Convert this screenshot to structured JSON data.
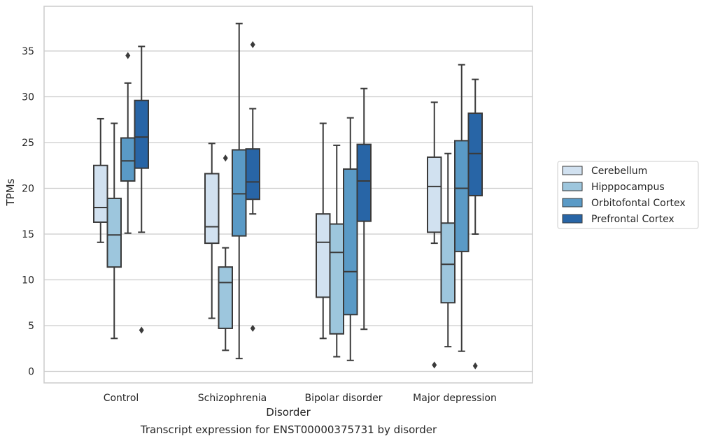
{
  "chart_data": {
    "type": "box",
    "xlabel": "Disorder",
    "ylabel": "TPMs",
    "ylim": [
      -1.2,
      40.0
    ],
    "yticks": [
      0,
      5,
      10,
      15,
      20,
      25,
      30,
      35
    ],
    "grid": "horizontal",
    "legend_position": "right",
    "categories": [
      "Control",
      "Schizophrenia",
      "Bipolar disorder",
      "Major depression"
    ],
    "series": [
      {
        "name": "Cerebellum",
        "color": "#d1e1f0",
        "boxes": [
          {
            "whislo": 14.1,
            "q1": 16.3,
            "med": 17.9,
            "q3": 22.5,
            "whishi": 27.6,
            "fliers": []
          },
          {
            "whislo": 5.8,
            "q1": 14.0,
            "med": 15.8,
            "q3": 21.6,
            "whishi": 24.9,
            "fliers": []
          },
          {
            "whislo": 3.6,
            "q1": 8.1,
            "med": 14.1,
            "q3": 17.2,
            "whishi": 27.1,
            "fliers": []
          },
          {
            "whislo": 14.0,
            "q1": 15.2,
            "med": 20.2,
            "q3": 23.4,
            "whishi": 29.4,
            "fliers": [
              0.7
            ]
          }
        ]
      },
      {
        "name": "Hipppocampus",
        "color": "#9dc6dd",
        "boxes": [
          {
            "whislo": 3.6,
            "q1": 11.4,
            "med": 14.9,
            "q3": 18.9,
            "whishi": 27.1,
            "fliers": []
          },
          {
            "whislo": 2.3,
            "q1": 4.7,
            "med": 9.7,
            "q3": 11.4,
            "whishi": 13.5,
            "fliers": [
              23.3
            ]
          },
          {
            "whislo": 1.6,
            "q1": 4.1,
            "med": 13.0,
            "q3": 16.1,
            "whishi": 24.7,
            "fliers": []
          },
          {
            "whislo": 2.7,
            "q1": 7.5,
            "med": 11.7,
            "q3": 16.2,
            "whishi": 23.8,
            "fliers": []
          }
        ]
      },
      {
        "name": "Orbitofontal Cortex",
        "color": "#5a9ac6",
        "boxes": [
          {
            "whislo": 15.1,
            "q1": 20.8,
            "med": 23.0,
            "q3": 25.5,
            "whishi": 31.5,
            "fliers": [
              34.5
            ]
          },
          {
            "whislo": 1.4,
            "q1": 14.8,
            "med": 19.4,
            "q3": 24.2,
            "whishi": 38.0,
            "fliers": []
          },
          {
            "whislo": 1.2,
            "q1": 6.2,
            "med": 10.9,
            "q3": 22.1,
            "whishi": 27.7,
            "fliers": []
          },
          {
            "whislo": 2.2,
            "q1": 13.1,
            "med": 20.0,
            "q3": 25.2,
            "whishi": 33.5,
            "fliers": []
          }
        ]
      },
      {
        "name": "Prefrontal Cortex",
        "color": "#2865a6",
        "boxes": [
          {
            "whislo": 15.2,
            "q1": 22.2,
            "med": 25.6,
            "q3": 29.6,
            "whishi": 35.5,
            "fliers": [
              4.5
            ]
          },
          {
            "whislo": 17.2,
            "q1": 18.8,
            "med": 20.7,
            "q3": 24.3,
            "whishi": 28.7,
            "fliers": [
              35.7,
              4.7
            ]
          },
          {
            "whislo": 4.6,
            "q1": 16.4,
            "med": 20.8,
            "q3": 24.8,
            "whishi": 30.9,
            "fliers": []
          },
          {
            "whislo": 15.0,
            "q1": 19.2,
            "med": 23.8,
            "q3": 28.2,
            "whishi": 31.9,
            "fliers": [
              0.6
            ]
          }
        ]
      }
    ]
  },
  "caption": "Transcript expression for ENST00000375731 by disorder"
}
